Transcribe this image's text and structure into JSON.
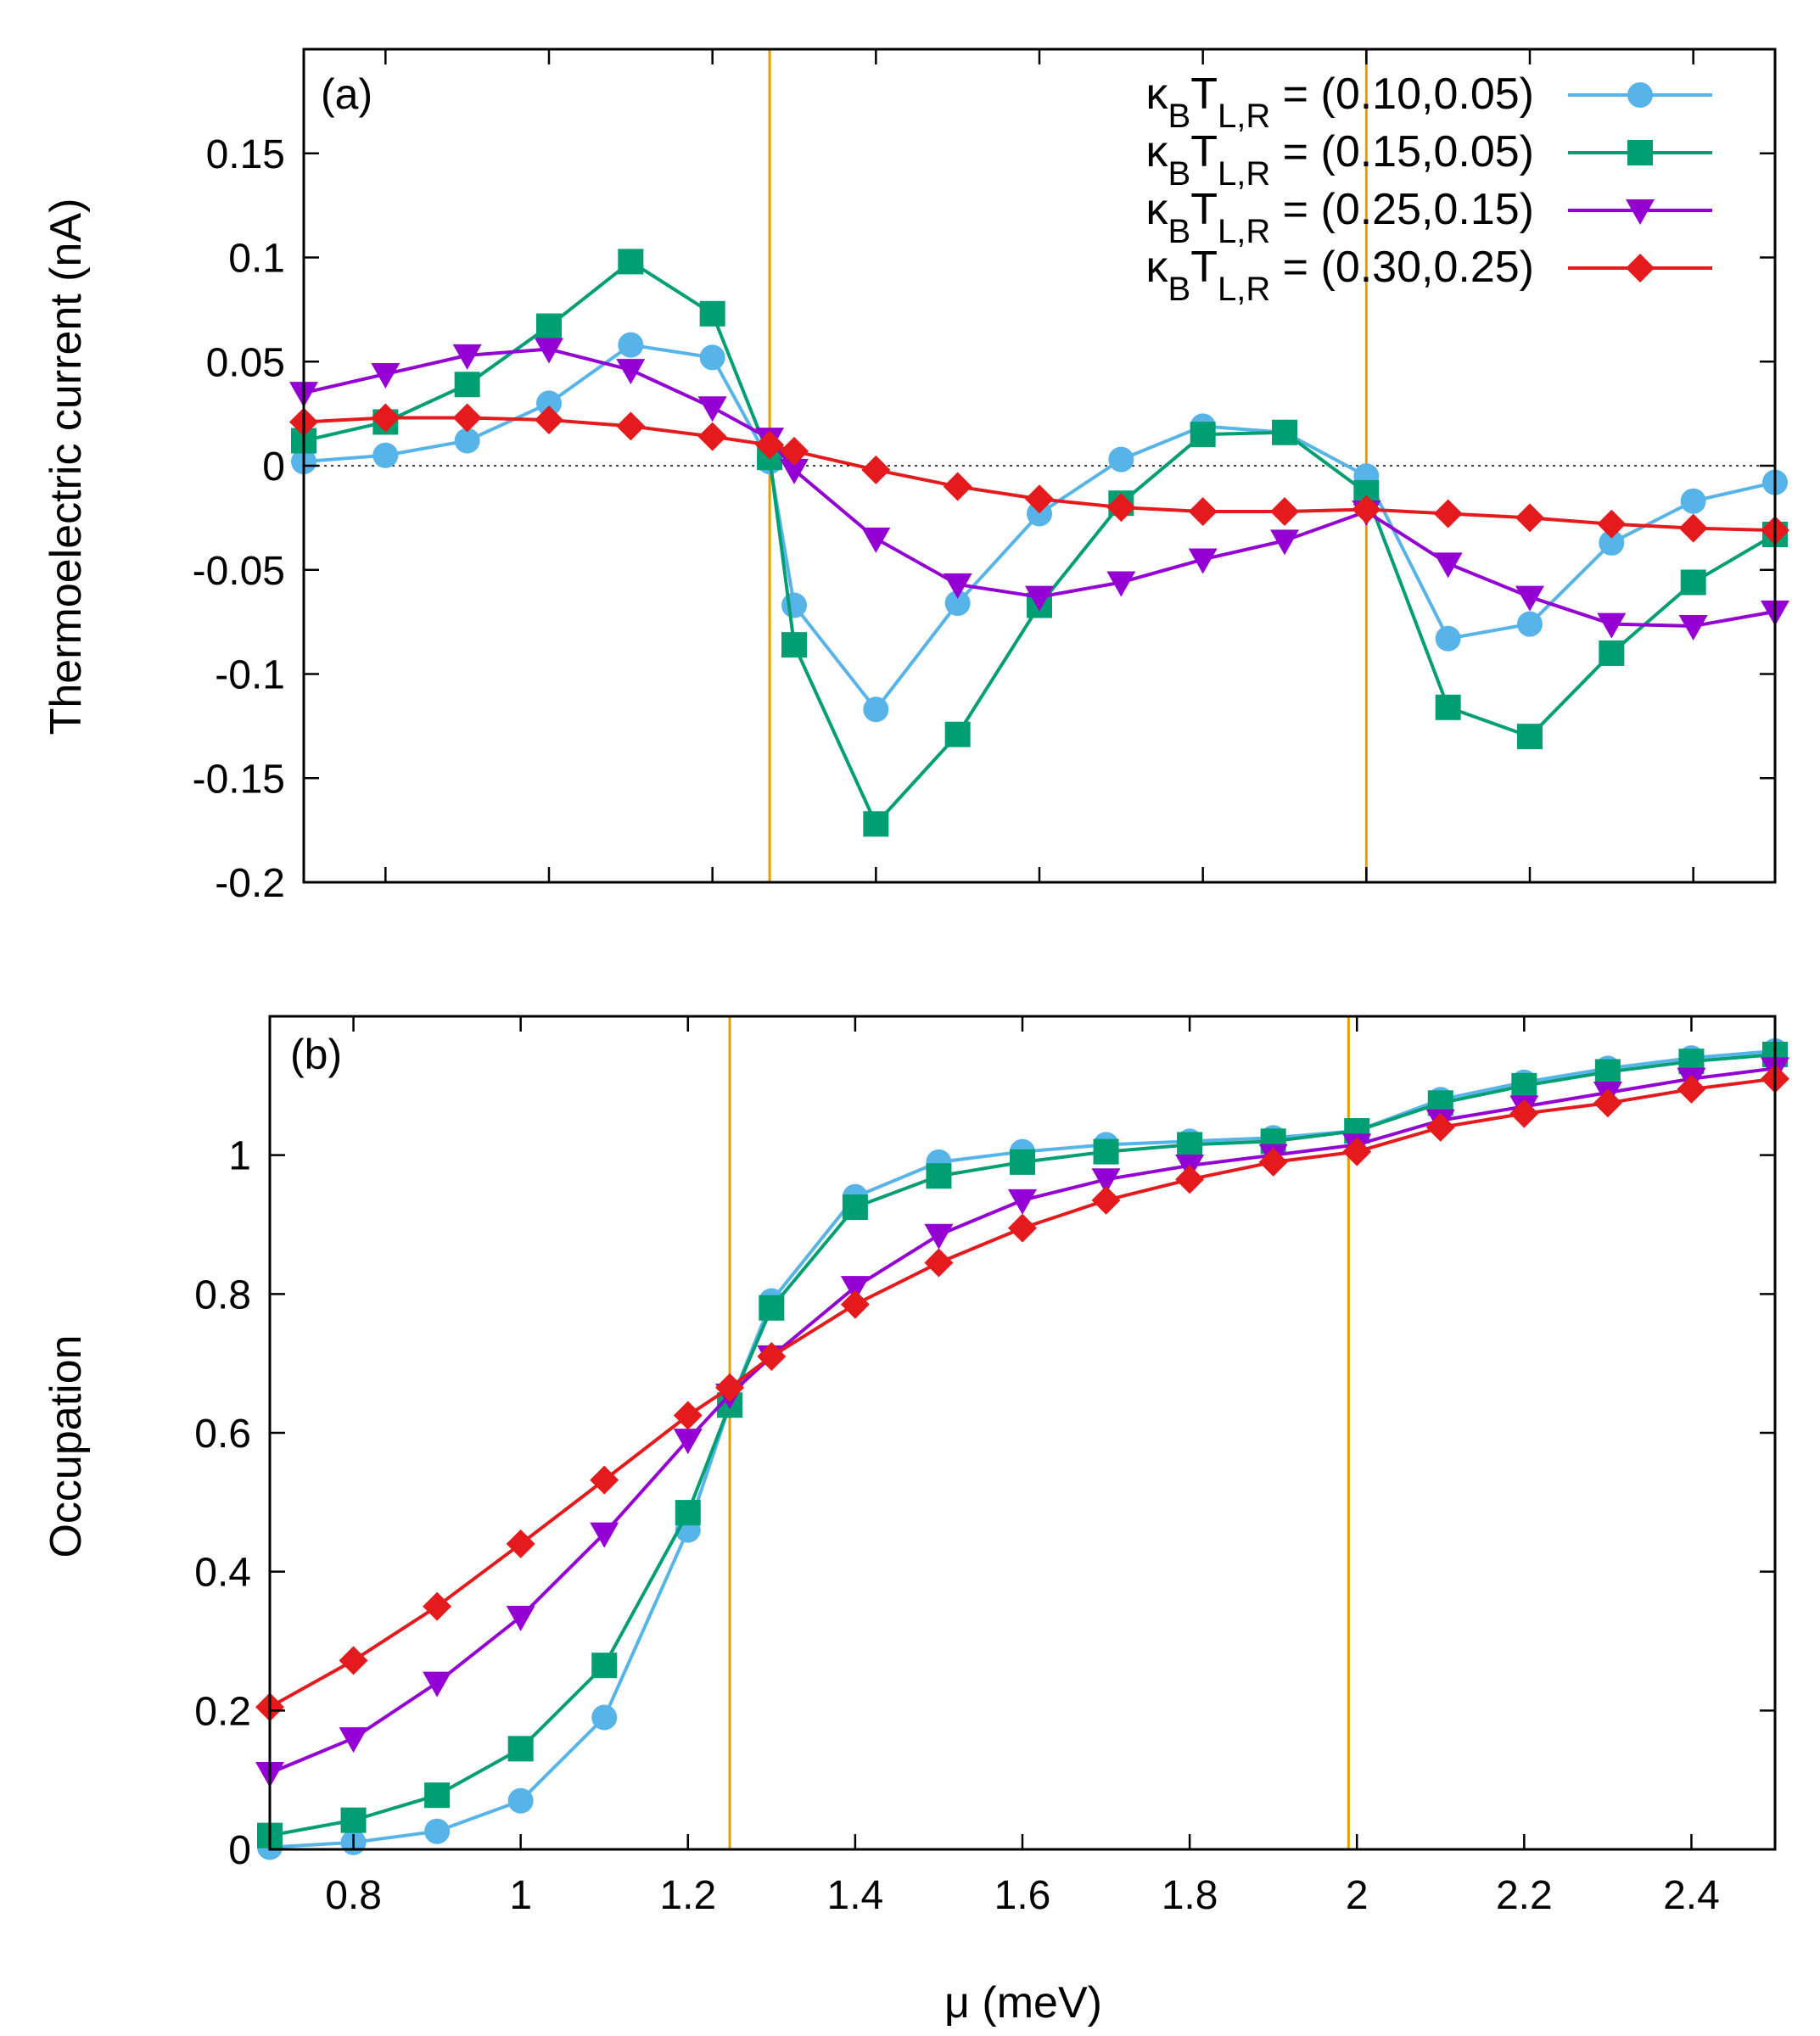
{
  "chart_data": [
    {
      "type": "line",
      "panel_label": "(a)",
      "ylabel": "Thermoelectric current (nA)",
      "xlabel": "",
      "xlim": [
        0.7,
        2.5
      ],
      "ylim": [
        -0.2,
        0.2
      ],
      "yticks": [
        -0.2,
        -0.15,
        -0.1,
        -0.05,
        0,
        0.05,
        0.1,
        0.15
      ],
      "ytick_labels": [
        "-0.2",
        "-0.15",
        "-0.1",
        "-0.05",
        "0",
        "0.05",
        "0.1",
        "0.15"
      ],
      "xticks": [
        0.8,
        1.0,
        1.2,
        1.4,
        1.6,
        1.8,
        2.0,
        2.2,
        2.4
      ],
      "xtick_labels": [],
      "zero_line": true,
      "vlines": [
        1.27,
        2.0
      ],
      "vline_color": "#e69f00",
      "x": [
        0.7,
        0.8,
        0.9,
        1.0,
        1.1,
        1.2,
        1.27,
        1.3,
        1.4,
        1.5,
        1.6,
        1.7,
        1.8,
        1.9,
        2.0,
        2.1,
        2.2,
        2.3,
        2.4,
        2.5
      ],
      "series": [
        {
          "name": "κBTL,R = (0.10,0.05)",
          "color": "#56b4e9",
          "marker": "circle",
          "values": [
            0.002,
            0.005,
            0.012,
            0.03,
            0.058,
            0.052,
            0.002,
            -0.067,
            -0.117,
            -0.066,
            -0.023,
            0.003,
            0.019,
            0.016,
            -0.005,
            -0.083,
            -0.076,
            -0.037,
            -0.017,
            -0.008
          ]
        },
        {
          "name": "κBTL,R = (0.15,0.05)",
          "color": "#009e73",
          "marker": "square",
          "values": [
            0.012,
            0.021,
            0.039,
            0.067,
            0.098,
            0.073,
            0.004,
            -0.086,
            -0.172,
            -0.129,
            -0.067,
            -0.018,
            0.015,
            0.016,
            -0.013,
            -0.116,
            -0.13,
            -0.09,
            -0.056,
            -0.033
          ]
        },
        {
          "name": "κBTL,R = (0.25,0.15)",
          "color": "#9400d3",
          "marker": "triangle-down",
          "values": [
            0.035,
            0.044,
            0.053,
            0.056,
            0.046,
            0.028,
            0.013,
            -0.002,
            -0.035,
            -0.057,
            -0.063,
            -0.056,
            -0.045,
            -0.036,
            -0.022,
            -0.047,
            -0.063,
            -0.076,
            -0.077,
            -0.07
          ]
        },
        {
          "name": "κBTL,R = (0.30,0.25)",
          "color": "#e41a1c",
          "marker": "diamond",
          "values": [
            0.021,
            0.023,
            0.023,
            0.022,
            0.019,
            0.014,
            0.01,
            0.007,
            -0.002,
            -0.01,
            -0.016,
            -0.02,
            -0.022,
            -0.022,
            -0.021,
            -0.023,
            -0.025,
            -0.028,
            -0.03,
            -0.031
          ]
        }
      ],
      "legend": {
        "placement": "top-right",
        "entries": [
          {
            "prefix": "κ",
            "sub1": "B",
            "mid": "T",
            "sub2": "L,R",
            "suffix": " = (0.10,0.05)"
          },
          {
            "prefix": "κ",
            "sub1": "B",
            "mid": "T",
            "sub2": "L,R",
            "suffix": " = (0.15,0.05)"
          },
          {
            "prefix": "κ",
            "sub1": "B",
            "mid": "T",
            "sub2": "L,R",
            "suffix": " = (0.25,0.15)"
          },
          {
            "prefix": "κ",
            "sub1": "B",
            "mid": "T",
            "sub2": "L,R",
            "suffix": " = (0.30,0.25)"
          }
        ]
      }
    },
    {
      "type": "line",
      "panel_label": "(b)",
      "ylabel": "Occupation",
      "xlabel": "μ (meV)",
      "xlim": [
        0.7,
        2.5
      ],
      "ylim": [
        0,
        1.2
      ],
      "yticks": [
        0,
        0.2,
        0.4,
        0.6,
        0.8,
        1.0
      ],
      "ytick_labels": [
        "0",
        "0.2",
        "0.4",
        "0.6",
        "0.8",
        "1"
      ],
      "xticks": [
        0.8,
        1.0,
        1.2,
        1.4,
        1.6,
        1.8,
        2.0,
        2.2,
        2.4
      ],
      "xtick_labels": [
        "0.8",
        "1",
        "1.2",
        "1.4",
        "1.6",
        "1.8",
        "2",
        "2.2",
        "2.4"
      ],
      "zero_line": false,
      "vlines": [
        1.25,
        1.99
      ],
      "vline_color": "#e69f00",
      "x": [
        0.7,
        0.8,
        0.9,
        1.0,
        1.1,
        1.2,
        1.25,
        1.3,
        1.4,
        1.5,
        1.6,
        1.7,
        1.8,
        1.9,
        2.0,
        2.1,
        2.2,
        2.3,
        2.4,
        2.5
      ],
      "series": [
        {
          "name": "κBTL,R = (0.10,0.05)",
          "color": "#56b4e9",
          "marker": "circle",
          "values": [
            0.003,
            0.01,
            0.026,
            0.07,
            0.19,
            0.46,
            0.64,
            0.79,
            0.94,
            0.99,
            1.005,
            1.015,
            1.02,
            1.025,
            1.035,
            1.08,
            1.105,
            1.125,
            1.14,
            1.15
          ]
        },
        {
          "name": "κBTL,R = (0.15,0.05)",
          "color": "#009e73",
          "marker": "square",
          "values": [
            0.02,
            0.042,
            0.078,
            0.145,
            0.265,
            0.485,
            0.64,
            0.78,
            0.925,
            0.97,
            0.99,
            1.005,
            1.015,
            1.02,
            1.035,
            1.075,
            1.1,
            1.12,
            1.135,
            1.145
          ]
        },
        {
          "name": "κBTL,R = (0.25,0.15)",
          "color": "#9400d3",
          "marker": "triangle-down",
          "values": [
            0.11,
            0.16,
            0.24,
            0.335,
            0.455,
            0.59,
            0.655,
            0.71,
            0.81,
            0.885,
            0.935,
            0.965,
            0.985,
            1.0,
            1.015,
            1.05,
            1.07,
            1.09,
            1.11,
            1.125
          ]
        },
        {
          "name": "κBTL,R = (0.30,0.25)",
          "color": "#e41a1c",
          "marker": "diamond",
          "values": [
            0.205,
            0.272,
            0.35,
            0.44,
            0.532,
            0.625,
            0.665,
            0.71,
            0.785,
            0.845,
            0.895,
            0.935,
            0.965,
            0.99,
            1.005,
            1.04,
            1.06,
            1.075,
            1.095,
            1.11
          ]
        }
      ]
    }
  ]
}
